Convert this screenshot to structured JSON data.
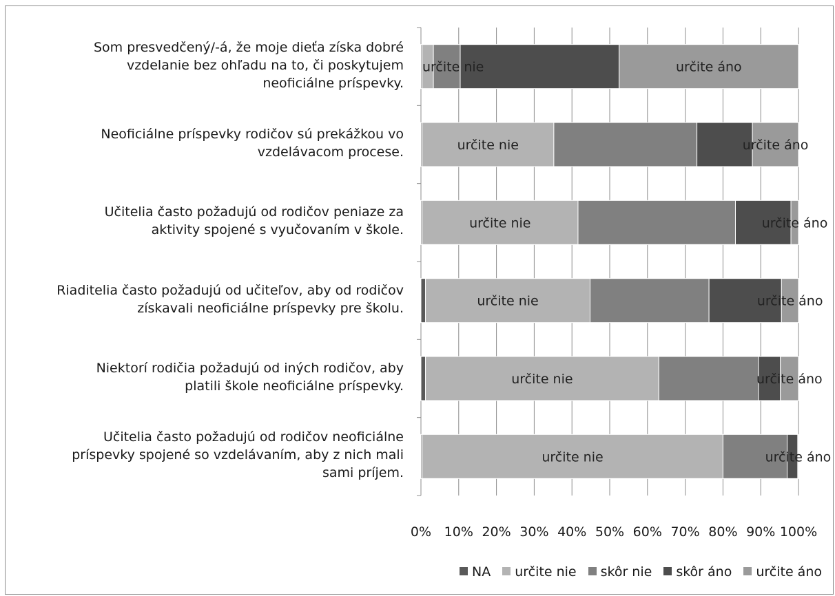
{
  "chart_data": {
    "type": "bar",
    "orientation": "horizontal",
    "stacked": "percent",
    "categories": [
      "Som presvedčený/-á, že moje dieťa získa dobré vzdelanie bez ohľadu na to, či poskytujem neoficiálne príspevky.",
      "Neoficiálne príspevky rodičov sú prekážkou vo vzdelávacom procese.",
      "Učitelia často požadujú od rodičov peniaze za aktivity spojené s vyučovaním v škole.",
      "Riaditelia často požadujú od učiteľov, aby od rodičov získavali neoficiálne príspevky pre školu.",
      "Niektorí rodičia požadujú od iných rodičov, aby platili škole neoficiálne príspevky.",
      "Učitelia často požadujú od rodičov neoficiálne príspevky spojené so vzdelávaním, aby z nich mali sami príjem."
    ],
    "series": [
      {
        "name": "NA",
        "color": "#595959",
        "values": [
          0.3,
          0.3,
          0.3,
          1.2,
          1.2,
          0.3
        ]
      },
      {
        "name": "určite nie",
        "color": "#b3b3b3",
        "values": [
          3.0,
          34.9,
          41.3,
          43.6,
          61.8,
          79.7
        ]
      },
      {
        "name": "skôr nie",
        "color": "#808080",
        "values": [
          7.1,
          37.9,
          41.7,
          31.5,
          26.4,
          17.0
        ]
      },
      {
        "name": "skôr áno",
        "color": "#4d4d4d",
        "values": [
          42.1,
          14.7,
          14.7,
          19.2,
          5.8,
          2.8
        ]
      },
      {
        "name": "určite áno",
        "color": "#9a9a9a",
        "values": [
          47.5,
          12.2,
          2.0,
          4.5,
          4.8,
          0.2
        ]
      }
    ],
    "xlim": [
      0,
      100
    ],
    "x_ticks": [
      "0%",
      "10%",
      "20%",
      "30%",
      "40%",
      "50%",
      "60%",
      "70%",
      "80%",
      "90%",
      "100%"
    ],
    "data_labels": [
      [
        {
          "series": 1,
          "text": "určite nie"
        },
        {
          "series": 4,
          "text": "určite áno"
        }
      ],
      [
        {
          "series": 1,
          "text": "určite nie"
        },
        {
          "series": 4,
          "text": "určite áno"
        }
      ],
      [
        {
          "series": 1,
          "text": "určite nie"
        },
        {
          "series": 4,
          "text": "určite áno"
        }
      ],
      [
        {
          "series": 1,
          "text": "určite nie"
        },
        {
          "series": 4,
          "text": "určite áno"
        }
      ],
      [
        {
          "series": 1,
          "text": "určite nie"
        },
        {
          "series": 4,
          "text": "určite áno"
        }
      ],
      [
        {
          "series": 1,
          "text": "určite nie"
        },
        {
          "series": 4,
          "text": "určite áno"
        }
      ]
    ],
    "grid": true,
    "legend_position": "bottom-right",
    "title": "",
    "xlabel": "",
    "ylabel": ""
  },
  "category_label_lines": [
    [
      "Som presvedčený/-á, že moje dieťa získa dobré",
      "vzdelanie bez ohľadu na to, či poskytujem",
      "neoficiálne príspevky."
    ],
    [
      "Neoficiálne príspevky rodičov sú prekážkou vo",
      "vzdelávacom procese."
    ],
    [
      "Učitelia často požadujú od rodičov peniaze za",
      "aktivity spojené s vyučovaním v škole."
    ],
    [
      "Riaditelia často požadujú od učiteľov, aby od rodičov",
      "získavali neoficiálne príspevky pre školu."
    ],
    [
      "Niektorí rodičia požadujú od iných rodičov, aby",
      "platili škole neoficiálne príspevky."
    ],
    [
      "Učitelia často požadujú od rodičov neoficiálne",
      "príspevky spojené so vzdelávaním, aby z nich mali",
      "sami príjem."
    ]
  ]
}
